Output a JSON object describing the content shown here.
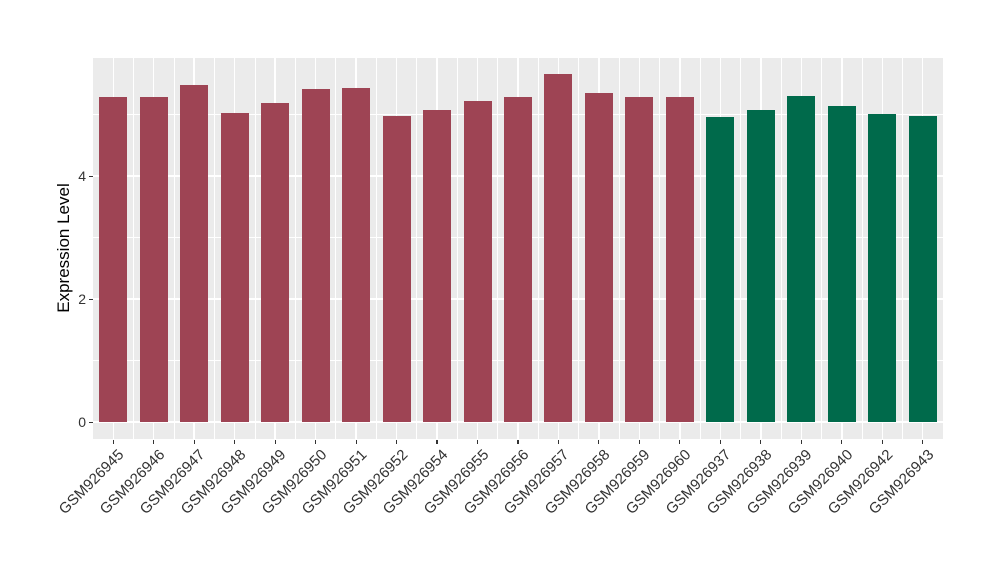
{
  "figure": {
    "background": "#FFFFFF",
    "panel_background": "#EBEBEB",
    "grid_color": "#FFFFFF",
    "axis_text_color": "#333333",
    "axis_title_color": "#000000"
  },
  "chart_data": {
    "type": "bar",
    "title": "",
    "xlabel": "",
    "ylabel": "Expression Level",
    "ylim": [
      -0.28,
      5.92
    ],
    "yticks": [
      0,
      2,
      4
    ],
    "yticks_minor": [
      1,
      3,
      5
    ],
    "grid": true,
    "legend_position": "none",
    "categories": [
      "GSM926945",
      "GSM926946",
      "GSM926947",
      "GSM926948",
      "GSM926949",
      "GSM926950",
      "GSM926951",
      "GSM926952",
      "GSM926954",
      "GSM926955",
      "GSM926956",
      "GSM926957",
      "GSM926958",
      "GSM926959",
      "GSM926960",
      "GSM926937",
      "GSM926938",
      "GSM926939",
      "GSM926940",
      "GSM926942",
      "GSM926943"
    ],
    "values": [
      5.29,
      5.29,
      5.48,
      5.03,
      5.19,
      5.41,
      5.43,
      4.98,
      5.07,
      5.22,
      5.29,
      5.66,
      5.35,
      5.28,
      5.28,
      4.96,
      5.07,
      5.3,
      5.14,
      5.01,
      4.98
    ],
    "bar_colors": [
      "#9E4454",
      "#9E4454",
      "#9E4454",
      "#9E4454",
      "#9E4454",
      "#9E4454",
      "#9E4454",
      "#9E4454",
      "#9E4454",
      "#9E4454",
      "#9E4454",
      "#9E4454",
      "#9E4454",
      "#9E4454",
      "#9E4454",
      "#006A4B",
      "#006A4B",
      "#006A4B",
      "#006A4B",
      "#006A4B",
      "#006A4B"
    ],
    "group_colors": {
      "group1": "#9E4454",
      "group2": "#006A4B"
    }
  }
}
